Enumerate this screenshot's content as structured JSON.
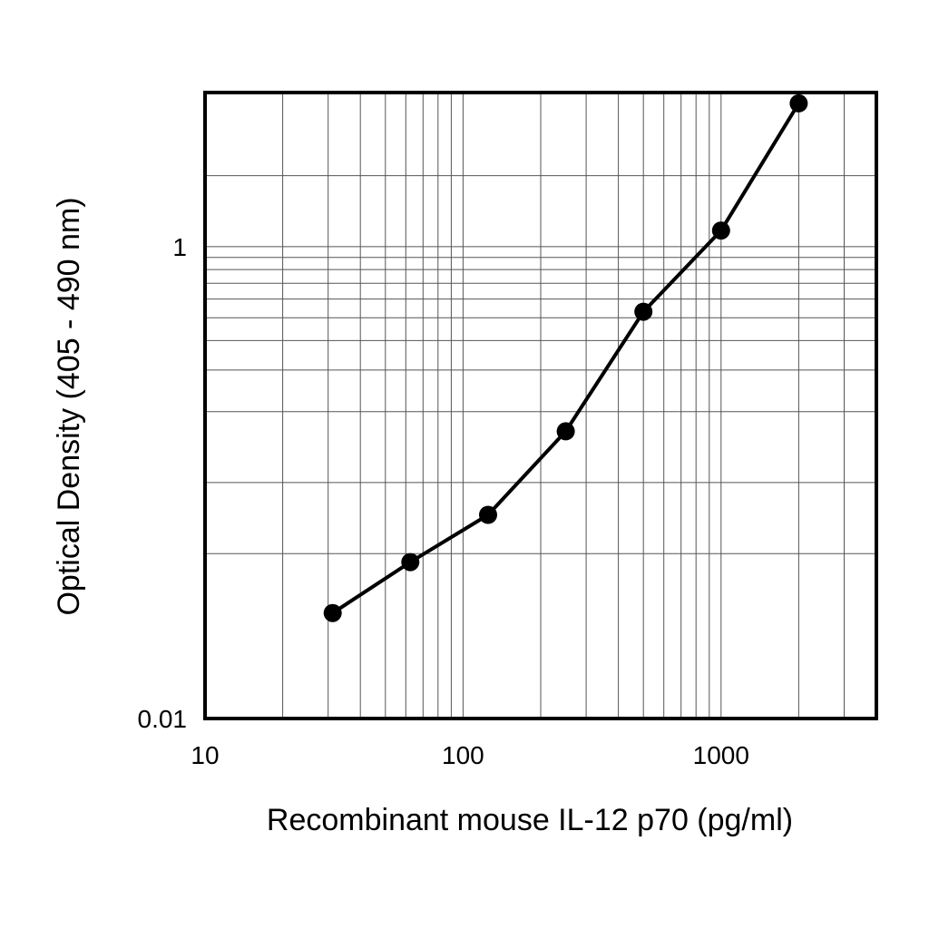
{
  "chart_data": {
    "type": "line",
    "title": "",
    "xlabel": "Recombinant mouse IL-12 p70 (pg/ml)",
    "ylabel": "Optical Density (405 - 490 nm)",
    "x_scale": "log",
    "y_scale": "log",
    "xlim": [
      10,
      4000
    ],
    "ylim": [
      0.01,
      4.5
    ],
    "x_ticks": [
      {
        "value": 10,
        "label": "10"
      },
      {
        "value": 100,
        "label": "100"
      },
      {
        "value": 1000,
        "label": "1000"
      }
    ],
    "y_ticks": [
      {
        "value": 0.01,
        "label": "0.01"
      },
      {
        "value": 1,
        "label": "1"
      }
    ],
    "x_gridlines": [
      20,
      30,
      40,
      50,
      60,
      70,
      80,
      90,
      100,
      200,
      300,
      400,
      500,
      600,
      700,
      800,
      900,
      1000,
      2000,
      3000
    ],
    "y_gridlines": [
      0.05,
      0.1,
      0.2,
      0.3,
      0.4,
      0.5,
      0.6,
      0.7,
      0.8,
      0.9,
      1,
      2
    ],
    "grid": true,
    "legend": "none",
    "series": [
      {
        "x": [
          31.25,
          62.5,
          125,
          250,
          500,
          1000,
          2000
        ],
        "y": [
          0.028,
          0.046,
          0.073,
          0.165,
          0.53,
          1.17,
          4.05
        ]
      }
    ]
  }
}
